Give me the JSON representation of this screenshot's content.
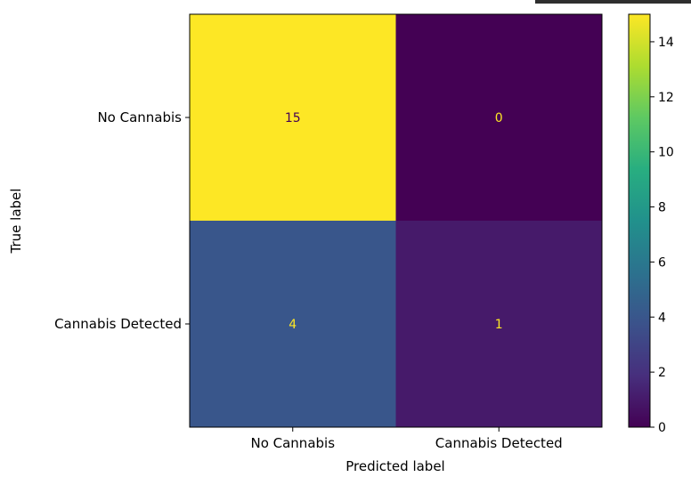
{
  "chart_data": {
    "type": "heatmap",
    "title": "",
    "xlabel": "Predicted label",
    "ylabel": "True label",
    "x_categories": [
      "No Cannabis",
      "Cannabis Detected"
    ],
    "y_categories": [
      "No Cannabis",
      "Cannabis Detected"
    ],
    "values": [
      [
        15,
        0
      ],
      [
        4,
        1
      ]
    ],
    "colormap": "viridis",
    "colorbar": {
      "range": [
        0,
        15
      ],
      "ticks": [
        0,
        2,
        4,
        6,
        8,
        10,
        12,
        14
      ]
    },
    "text_colors": {
      "on_light": "#440154",
      "on_dark": "#fde725"
    }
  }
}
